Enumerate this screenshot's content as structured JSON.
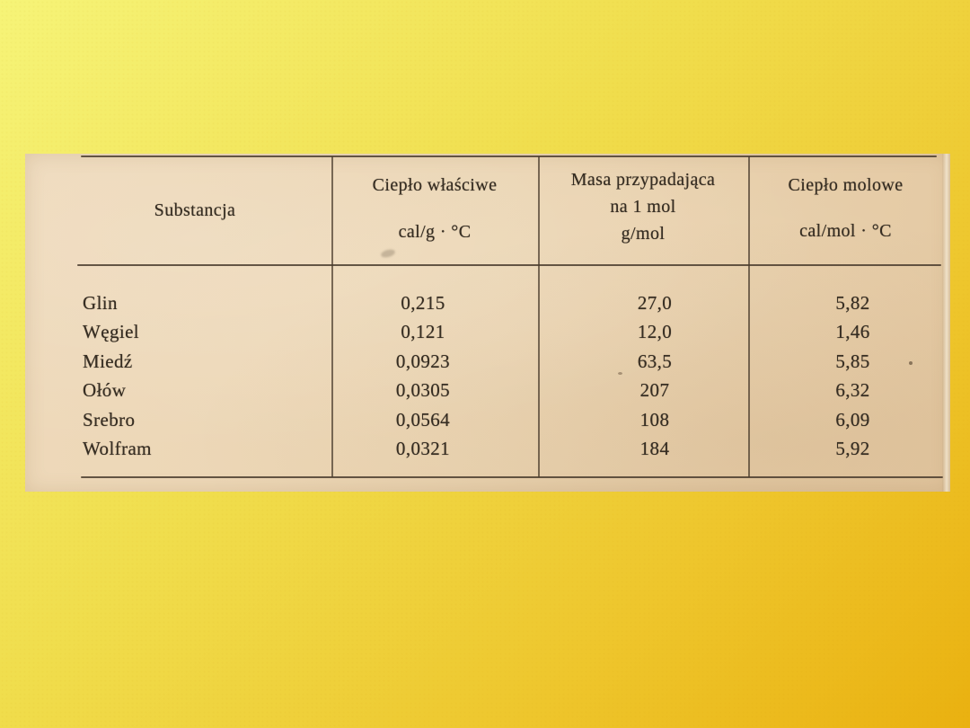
{
  "slide": {
    "background_colors": {
      "top_left": "#f5f46e",
      "top_right": "#efd03a",
      "bottom_left": "#ecd93e",
      "bottom_right": "#ebb411"
    }
  },
  "scan": {
    "paper_color": "#ebd5b3",
    "ink_color": "#362d22"
  },
  "table": {
    "columns": [
      {
        "id": "substance",
        "header_lines": [
          "Substancja"
        ]
      },
      {
        "id": "specific_heat",
        "header_lines": [
          "Ciepło właściwe",
          "cal/g · °C"
        ]
      },
      {
        "id": "molar_mass",
        "header_lines": [
          "Masa przypadająca",
          "na 1 mol",
          "g/mol"
        ]
      },
      {
        "id": "molar_heat",
        "header_lines": [
          "Ciepło molowe",
          "cal/mol · °C"
        ]
      }
    ],
    "rows": [
      {
        "substance": "Glin",
        "specific_heat": "0,215",
        "molar_mass": "27,0",
        "molar_heat": "5,82"
      },
      {
        "substance": "Węgiel",
        "specific_heat": "0,121",
        "molar_mass": "12,0",
        "molar_heat": "1,46"
      },
      {
        "substance": "Miedź",
        "specific_heat": "0,0923",
        "molar_mass": "63,5",
        "molar_heat": "5,85"
      },
      {
        "substance": "Ołów",
        "specific_heat": "0,0305",
        "molar_mass": "207",
        "molar_heat": "6,32"
      },
      {
        "substance": "Srebro",
        "specific_heat": "0,0564",
        "molar_mass": "108",
        "molar_heat": "6,09"
      },
      {
        "substance": "Wolfram",
        "specific_heat": "0,0321",
        "molar_mass": "184",
        "molar_heat": "5,92"
      }
    ]
  },
  "chart_data": {
    "type": "table",
    "columns": [
      "Substancja",
      "Ciepło właściwe cal/g · °C",
      "Masa przypadająca na 1 mol g/mol",
      "Ciepło molowe cal/mol · °C"
    ],
    "rows": [
      [
        "Glin",
        0.215,
        27.0,
        5.82
      ],
      [
        "Węgiel",
        0.121,
        12.0,
        1.46
      ],
      [
        "Miedź",
        0.0923,
        63.5,
        5.85
      ],
      [
        "Ołów",
        0.0305,
        207,
        6.32
      ],
      [
        "Srebro",
        0.0564,
        108,
        6.09
      ],
      [
        "Wolfram",
        0.0321,
        184,
        5.92
      ]
    ]
  }
}
